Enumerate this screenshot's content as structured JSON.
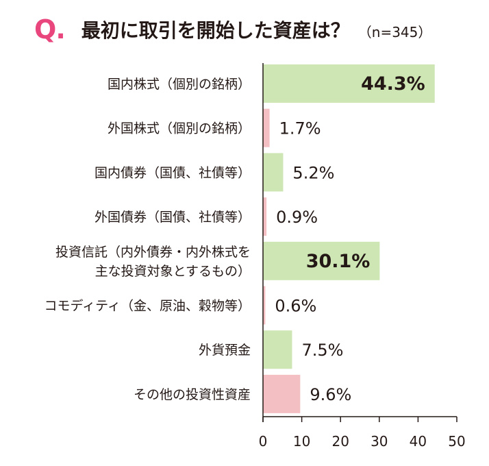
{
  "header": {
    "q_letter": "Q",
    "q_dot": ".",
    "question": "最初に取引を開始した資産は？",
    "sample": "（n=345）"
  },
  "colors": {
    "accent": "#e8467c",
    "highlight_bar": "#cde6b4",
    "normal_bar": "#f4bfc2",
    "axis": "#231815"
  },
  "chart_data": {
    "type": "bar",
    "orientation": "horizontal",
    "title": "最初に取引を開始した資産は？",
    "subtitle": "（n=345）",
    "categories": [
      [
        "国内株式（個別の銘柄）"
      ],
      [
        "外国株式（個別の銘柄）"
      ],
      [
        "国内債券（国債、社債等）"
      ],
      [
        "外国債券（国債、社債等）"
      ],
      [
        "投資信託（内外債券・内外株式を",
        "主な投資対象とするもの）"
      ],
      [
        "コモディティ（金、原油、穀物等）"
      ],
      [
        "外貨預金"
      ],
      [
        "その他の投資性資産"
      ]
    ],
    "values": [
      44.3,
      1.7,
      5.2,
      0.9,
      30.1,
      0.6,
      7.5,
      9.6
    ],
    "value_labels": [
      "44.3%",
      "1.7%",
      "5.2%",
      "0.9%",
      "30.1%",
      "0.6%",
      "7.5%",
      "9.6%"
    ],
    "bar_colors": [
      "green",
      "pink",
      "green",
      "pink",
      "green",
      "pink",
      "green",
      "pink"
    ],
    "bold_value_labels": [
      true,
      false,
      false,
      false,
      true,
      false,
      false,
      false
    ],
    "label_inside": [
      true,
      false,
      false,
      false,
      true,
      false,
      false,
      false
    ],
    "xlim": [
      0,
      50
    ],
    "xticks": [
      0,
      10,
      20,
      30,
      40,
      50
    ],
    "xlabel": "",
    "ylabel": "",
    "grid": false,
    "legend": "none"
  }
}
